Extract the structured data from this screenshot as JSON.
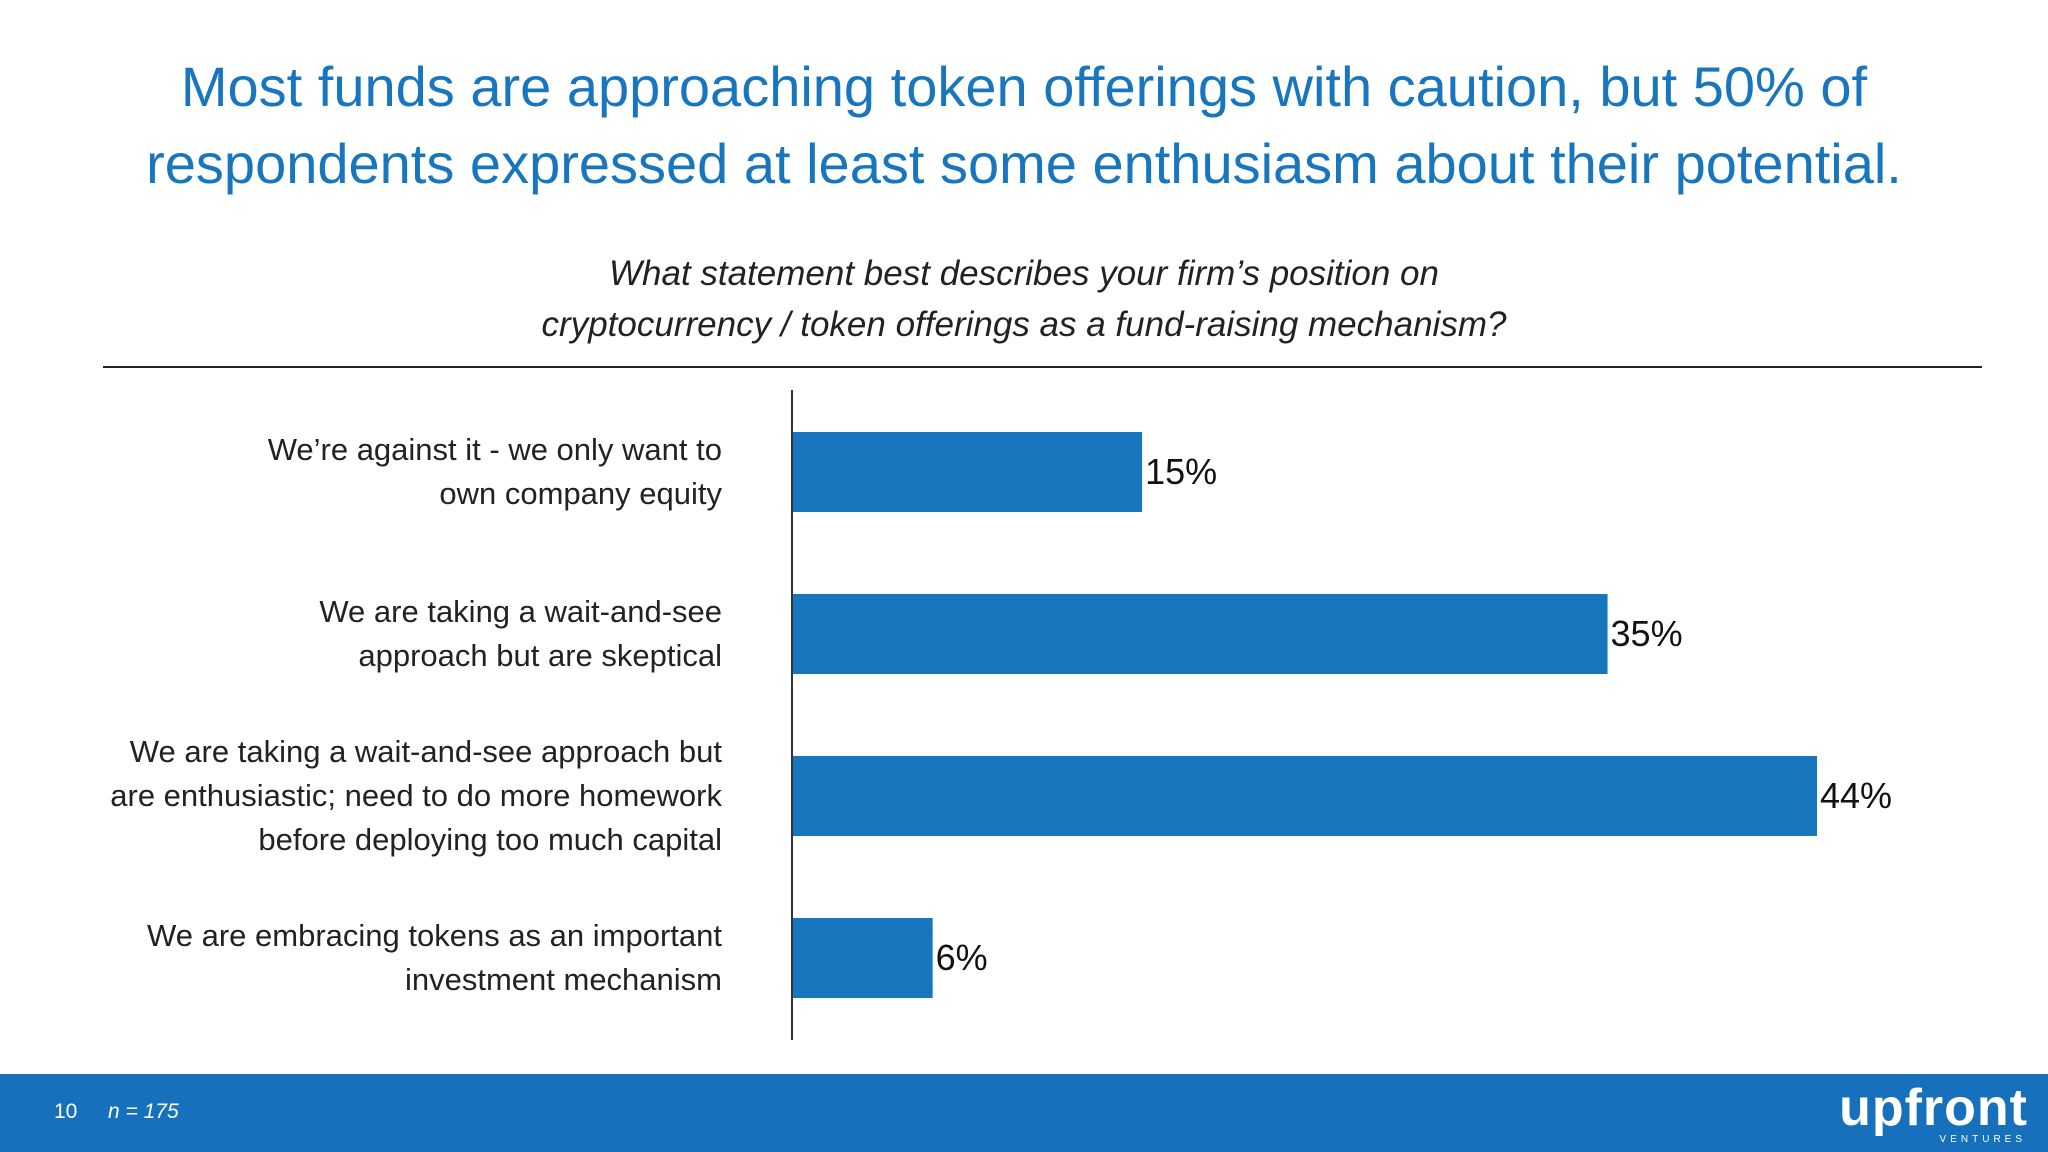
{
  "slide": {
    "headline_lines": [
      "Most funds are approaching token offerings with caution, but 50% of",
      "respondents expressed at least some enthusiasm about their potential."
    ],
    "question_lines": [
      "What statement best describes your firm’s position on",
      "cryptocurrency / token offerings as a fund-raising mechanism?"
    ]
  },
  "chart_data": {
    "type": "bar",
    "orientation": "horizontal",
    "categories": [
      [
        "We’re against it - we only want to",
        "own company equity"
      ],
      [
        "We are taking a wait-and-see",
        "approach but are skeptical"
      ],
      [
        "We are taking a wait-and-see approach but",
        "are enthusiastic; need to do more homework",
        "before deploying too much capital"
      ],
      [
        "We are embracing tokens as an important",
        "investment mechanism"
      ]
    ],
    "values": [
      15,
      35,
      44,
      6
    ],
    "value_labels": [
      "15%",
      "35%",
      "44%",
      "6%"
    ],
    "xlim": [
      0,
      44
    ],
    "bar_color": "#1776bd",
    "grid": false
  },
  "footer": {
    "page_number": "10",
    "sample_size": "n = 175",
    "logo_text": "upfront",
    "logo_subtext": "VENTURES",
    "background_color": "#1770bb"
  }
}
